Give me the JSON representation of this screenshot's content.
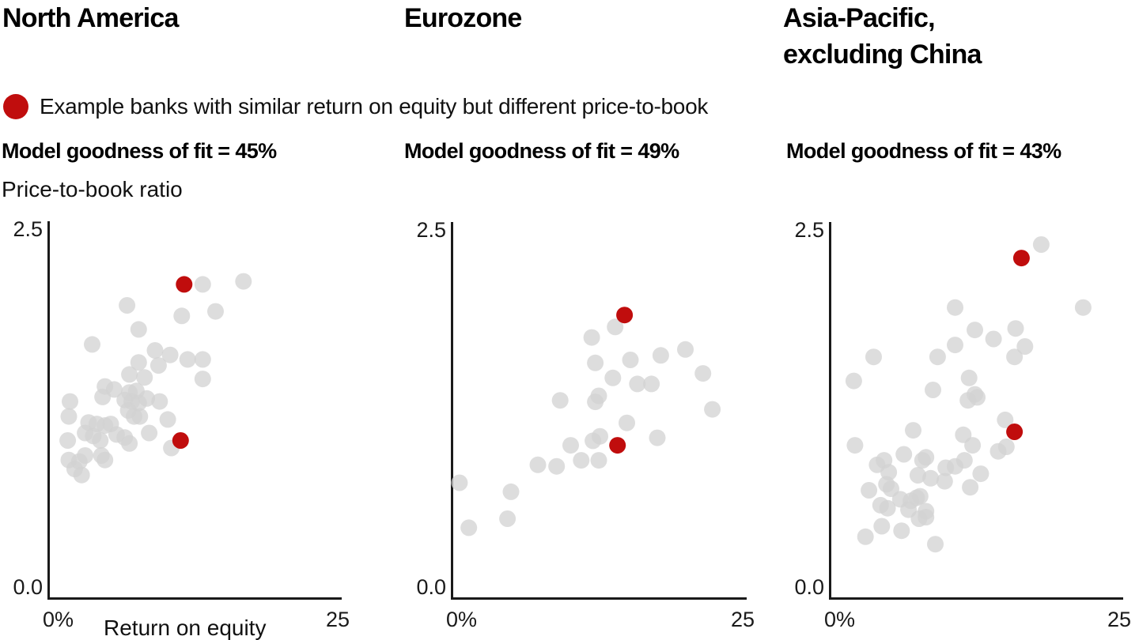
{
  "legend": {
    "label": "Example banks with similar return on equity but different price-to-book",
    "marker_color": "#c00d0d"
  },
  "shared": {
    "ylabel": "Price-to-book ratio",
    "xlabel": "Return on equity"
  },
  "colors": {
    "bank_dot": "#d2d2d2",
    "example_bank_dot": "#c00d0d",
    "axis": "#1a1a1a",
    "text": "#000000"
  },
  "chart_data": [
    {
      "type": "scatter",
      "title": "North America",
      "title_lines": [
        "North America"
      ],
      "subtitle": "Model goodness of fit = 45%",
      "goodness_of_fit_pct": 45,
      "xlabel": "Return on equity",
      "ylabel": "Price-to-book ratio",
      "xlim": [
        0,
        25
      ],
      "ylim": [
        0,
        2.5
      ],
      "x_tick_labels": [
        "0%",
        "25"
      ],
      "y_tick_labels": [
        "0.0",
        "2.5"
      ],
      "grid": false,
      "legend_position": "none",
      "series": [
        {
          "name": "banks",
          "color": "#d2d2d2",
          "opacity": 0.75,
          "points": [
            [
              13.2,
              2.09
            ],
            [
              16.7,
              2.11
            ],
            [
              6.7,
              1.95
            ],
            [
              14.3,
              1.91
            ],
            [
              11.4,
              1.88
            ],
            [
              7.7,
              1.79
            ],
            [
              3.7,
              1.69
            ],
            [
              9.1,
              1.65
            ],
            [
              10.4,
              1.62
            ],
            [
              11.9,
              1.59
            ],
            [
              13.2,
              1.59
            ],
            [
              7.7,
              1.57
            ],
            [
              9.4,
              1.55
            ],
            [
              6.9,
              1.49
            ],
            [
              8.2,
              1.47
            ],
            [
              13.2,
              1.46
            ],
            [
              4.8,
              1.41
            ],
            [
              5.6,
              1.39
            ],
            [
              4.6,
              1.34
            ],
            [
              6.9,
              1.37
            ],
            [
              7.5,
              1.38
            ],
            [
              1.8,
              1.31
            ],
            [
              6.5,
              1.32
            ],
            [
              7.1,
              1.31
            ],
            [
              7.7,
              1.3
            ],
            [
              8.4,
              1.33
            ],
            [
              9.5,
              1.31
            ],
            [
              1.7,
              1.21
            ],
            [
              3.4,
              1.17
            ],
            [
              4.1,
              1.16
            ],
            [
              4.8,
              1.15
            ],
            [
              5.3,
              1.16
            ],
            [
              6.8,
              1.25
            ],
            [
              7.3,
              1.21
            ],
            [
              7.8,
              1.21
            ],
            [
              10.2,
              1.19
            ],
            [
              3.1,
              1.1
            ],
            [
              3.8,
              1.08
            ],
            [
              4.4,
              1.05
            ],
            [
              1.6,
              1.05
            ],
            [
              5.8,
              1.09
            ],
            [
              6.5,
              1.07
            ],
            [
              6.9,
              1.03
            ],
            [
              8.6,
              1.1
            ],
            [
              10.5,
              1.0
            ],
            [
              1.7,
              0.92
            ],
            [
              2.6,
              0.91
            ],
            [
              3.1,
              0.95
            ],
            [
              4.5,
              0.95
            ],
            [
              4.8,
              0.92
            ],
            [
              2.2,
              0.86
            ],
            [
              2.8,
              0.82
            ]
          ]
        },
        {
          "name": "example banks",
          "color": "#c00d0d",
          "opacity": 1,
          "points": [
            [
              11.6,
              2.09
            ],
            [
              11.3,
              1.05
            ]
          ]
        }
      ]
    },
    {
      "type": "scatter",
      "title": "Eurozone",
      "title_lines": [
        "Eurozone"
      ],
      "subtitle": "Model goodness of fit = 49%",
      "goodness_of_fit_pct": 49,
      "xlabel": "Return on equity",
      "ylabel": "Price-to-book ratio",
      "xlim": [
        0,
        25
      ],
      "ylim": [
        0,
        2.5
      ],
      "x_tick_labels": [
        "0%",
        "25"
      ],
      "y_tick_labels": [
        "0.0",
        "2.5"
      ],
      "grid": false,
      "legend_position": "none",
      "series": [
        {
          "name": "banks",
          "color": "#d2d2d2",
          "opacity": 0.75,
          "points": [
            [
              13.9,
              1.81
            ],
            [
              11.9,
              1.74
            ],
            [
              12.2,
              1.57
            ],
            [
              15.2,
              1.59
            ],
            [
              17.8,
              1.62
            ],
            [
              19.9,
              1.66
            ],
            [
              13.7,
              1.47
            ],
            [
              15.8,
              1.43
            ],
            [
              17.0,
              1.43
            ],
            [
              21.4,
              1.5
            ],
            [
              12.5,
              1.35
            ],
            [
              12.2,
              1.31
            ],
            [
              9.2,
              1.32
            ],
            [
              22.2,
              1.26
            ],
            [
              14.9,
              1.17
            ],
            [
              17.5,
              1.07
            ],
            [
              12.6,
              1.08
            ],
            [
              12.0,
              1.05
            ],
            [
              10.1,
              1.02
            ],
            [
              11.0,
              0.92
            ],
            [
              12.5,
              0.92
            ],
            [
              7.3,
              0.89
            ],
            [
              8.9,
              0.88
            ],
            [
              0.6,
              0.77
            ],
            [
              5.0,
              0.71
            ],
            [
              4.7,
              0.53
            ],
            [
              1.4,
              0.47
            ]
          ]
        },
        {
          "name": "example banks",
          "color": "#c00d0d",
          "opacity": 1,
          "points": [
            [
              14.7,
              1.89
            ],
            [
              14.1,
              1.02
            ]
          ]
        }
      ]
    },
    {
      "type": "scatter",
      "title": "Asia-Pacific, excluding China",
      "title_lines": [
        "Asia-Pacific,",
        "excluding China"
      ],
      "subtitle": "Model goodness of fit = 43%",
      "goodness_of_fit_pct": 43,
      "xlabel": "Return on equity",
      "ylabel": "Price-to-book ratio",
      "xlim": [
        0,
        25
      ],
      "ylim": [
        0,
        2.5
      ],
      "x_tick_labels": [
        "0%",
        "25"
      ],
      "y_tick_labels": [
        "0.0",
        "2.5"
      ],
      "grid": false,
      "legend_position": "none",
      "series": [
        {
          "name": "banks",
          "color": "#d2d2d2",
          "opacity": 0.75,
          "points": [
            [
              18.1,
              2.36
            ],
            [
              10.7,
              1.94
            ],
            [
              21.7,
              1.94
            ],
            [
              12.4,
              1.79
            ],
            [
              15.9,
              1.8
            ],
            [
              14.0,
              1.73
            ],
            [
              16.7,
              1.68
            ],
            [
              10.7,
              1.69
            ],
            [
              15.8,
              1.61
            ],
            [
              9.2,
              1.61
            ],
            [
              3.7,
              1.61
            ],
            [
              2.0,
              1.45
            ],
            [
              11.9,
              1.47
            ],
            [
              8.8,
              1.39
            ],
            [
              12.4,
              1.36
            ],
            [
              11.8,
              1.32
            ],
            [
              12.6,
              1.34
            ],
            [
              15.0,
              1.19
            ],
            [
              7.1,
              1.12
            ],
            [
              11.4,
              1.09
            ],
            [
              12.2,
              1.02
            ],
            [
              2.1,
              1.02
            ],
            [
              14.4,
              0.98
            ],
            [
              15.1,
              1.01
            ],
            [
              6.3,
              0.96
            ],
            [
              8.2,
              0.94
            ],
            [
              4.0,
              0.89
            ],
            [
              4.6,
              0.92
            ],
            [
              7.9,
              0.92
            ],
            [
              9.9,
              0.87
            ],
            [
              10.7,
              0.88
            ],
            [
              11.5,
              0.92
            ],
            [
              5.0,
              0.84
            ],
            [
              7.5,
              0.82
            ],
            [
              8.6,
              0.8
            ],
            [
              9.8,
              0.78
            ],
            [
              12.9,
              0.83
            ],
            [
              12.0,
              0.74
            ],
            [
              3.3,
              0.72
            ],
            [
              4.8,
              0.76
            ],
            [
              5.2,
              0.73
            ],
            [
              6.0,
              0.66
            ],
            [
              6.9,
              0.65
            ],
            [
              7.4,
              0.67
            ],
            [
              7.7,
              0.68
            ],
            [
              4.3,
              0.62
            ],
            [
              4.9,
              0.6
            ],
            [
              6.7,
              0.59
            ],
            [
              8.2,
              0.58
            ],
            [
              7.6,
              0.53
            ],
            [
              8.2,
              0.54
            ],
            [
              4.4,
              0.48
            ],
            [
              6.1,
              0.45
            ],
            [
              3.0,
              0.41
            ],
            [
              9.0,
              0.36
            ]
          ]
        },
        {
          "name": "example banks",
          "color": "#c00d0d",
          "opacity": 1,
          "points": [
            [
              16.4,
              2.27
            ],
            [
              15.8,
              1.11
            ]
          ]
        }
      ]
    }
  ]
}
